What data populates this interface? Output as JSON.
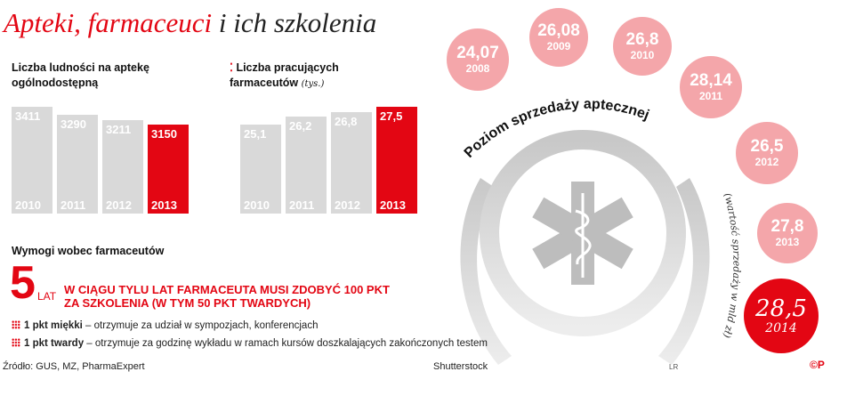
{
  "title": {
    "part1": "Apteki, farmaceuci",
    "part2": "i ich szkolenia"
  },
  "chart_data": [
    {
      "type": "bar",
      "title": "Liczba ludności na aptekę ogólnodostępną",
      "categories": [
        "2010",
        "2011",
        "2012",
        "2013"
      ],
      "values": [
        3411,
        3290,
        3211,
        3150
      ],
      "value_labels": [
        "3411",
        "3290",
        "3211",
        "3150"
      ],
      "highlight": "2013"
    },
    {
      "type": "bar",
      "title": "Liczba pracujących farmaceutów",
      "unit": "(tys.)",
      "categories": [
        "2010",
        "2011",
        "2012",
        "2013"
      ],
      "values": [
        25.1,
        26.2,
        26.8,
        27.5
      ],
      "value_labels": [
        "25,1",
        "26,2",
        "26,8",
        "27,5"
      ],
      "highlight": "2013"
    },
    {
      "type": "bubble",
      "title": "Poziom sprzedaży aptecznej",
      "subtitle": "(wartość sprzedaży w mld zł)",
      "categories": [
        "2008",
        "2009",
        "2010",
        "2011",
        "2012",
        "2013",
        "2014"
      ],
      "values": [
        24.07,
        26.08,
        26.8,
        28.14,
        26.5,
        27.8,
        28.5
      ],
      "value_labels": [
        "24,07",
        "26,08",
        "26,8",
        "28,14",
        "26,5",
        "27,8",
        "28,5"
      ],
      "highlight": "2014"
    }
  ],
  "requirements": {
    "heading": "Wymogi wobec farmaceutów",
    "big_number": "5",
    "big_unit": "LAT",
    "statement_line1": "W CIĄGU TYLU LAT FARMACEUTA MUSI ZDOBYĆ 100 PKT",
    "statement_line2": "ZA SZKOLENIA (W TYM 50 PKT TWARDYCH)",
    "items": [
      {
        "term": "1 pkt miękki",
        "desc": " – otrzymuje za udział w sympozjach, konferencjach"
      },
      {
        "term": "1 pkt twardy",
        "desc": " – otrzymuje za godzinę wykładu w ramach kursów doszkalających zakończonych testem"
      }
    ]
  },
  "footer": {
    "source": "Źródło: GUS, MZ, PharmaExpert",
    "photo": "Shutterstock",
    "credit": "LR",
    "logo": "©P"
  },
  "colors": {
    "accent": "#e30613",
    "bar": "#d9d9d9",
    "bubble": "#f4a6aa"
  }
}
